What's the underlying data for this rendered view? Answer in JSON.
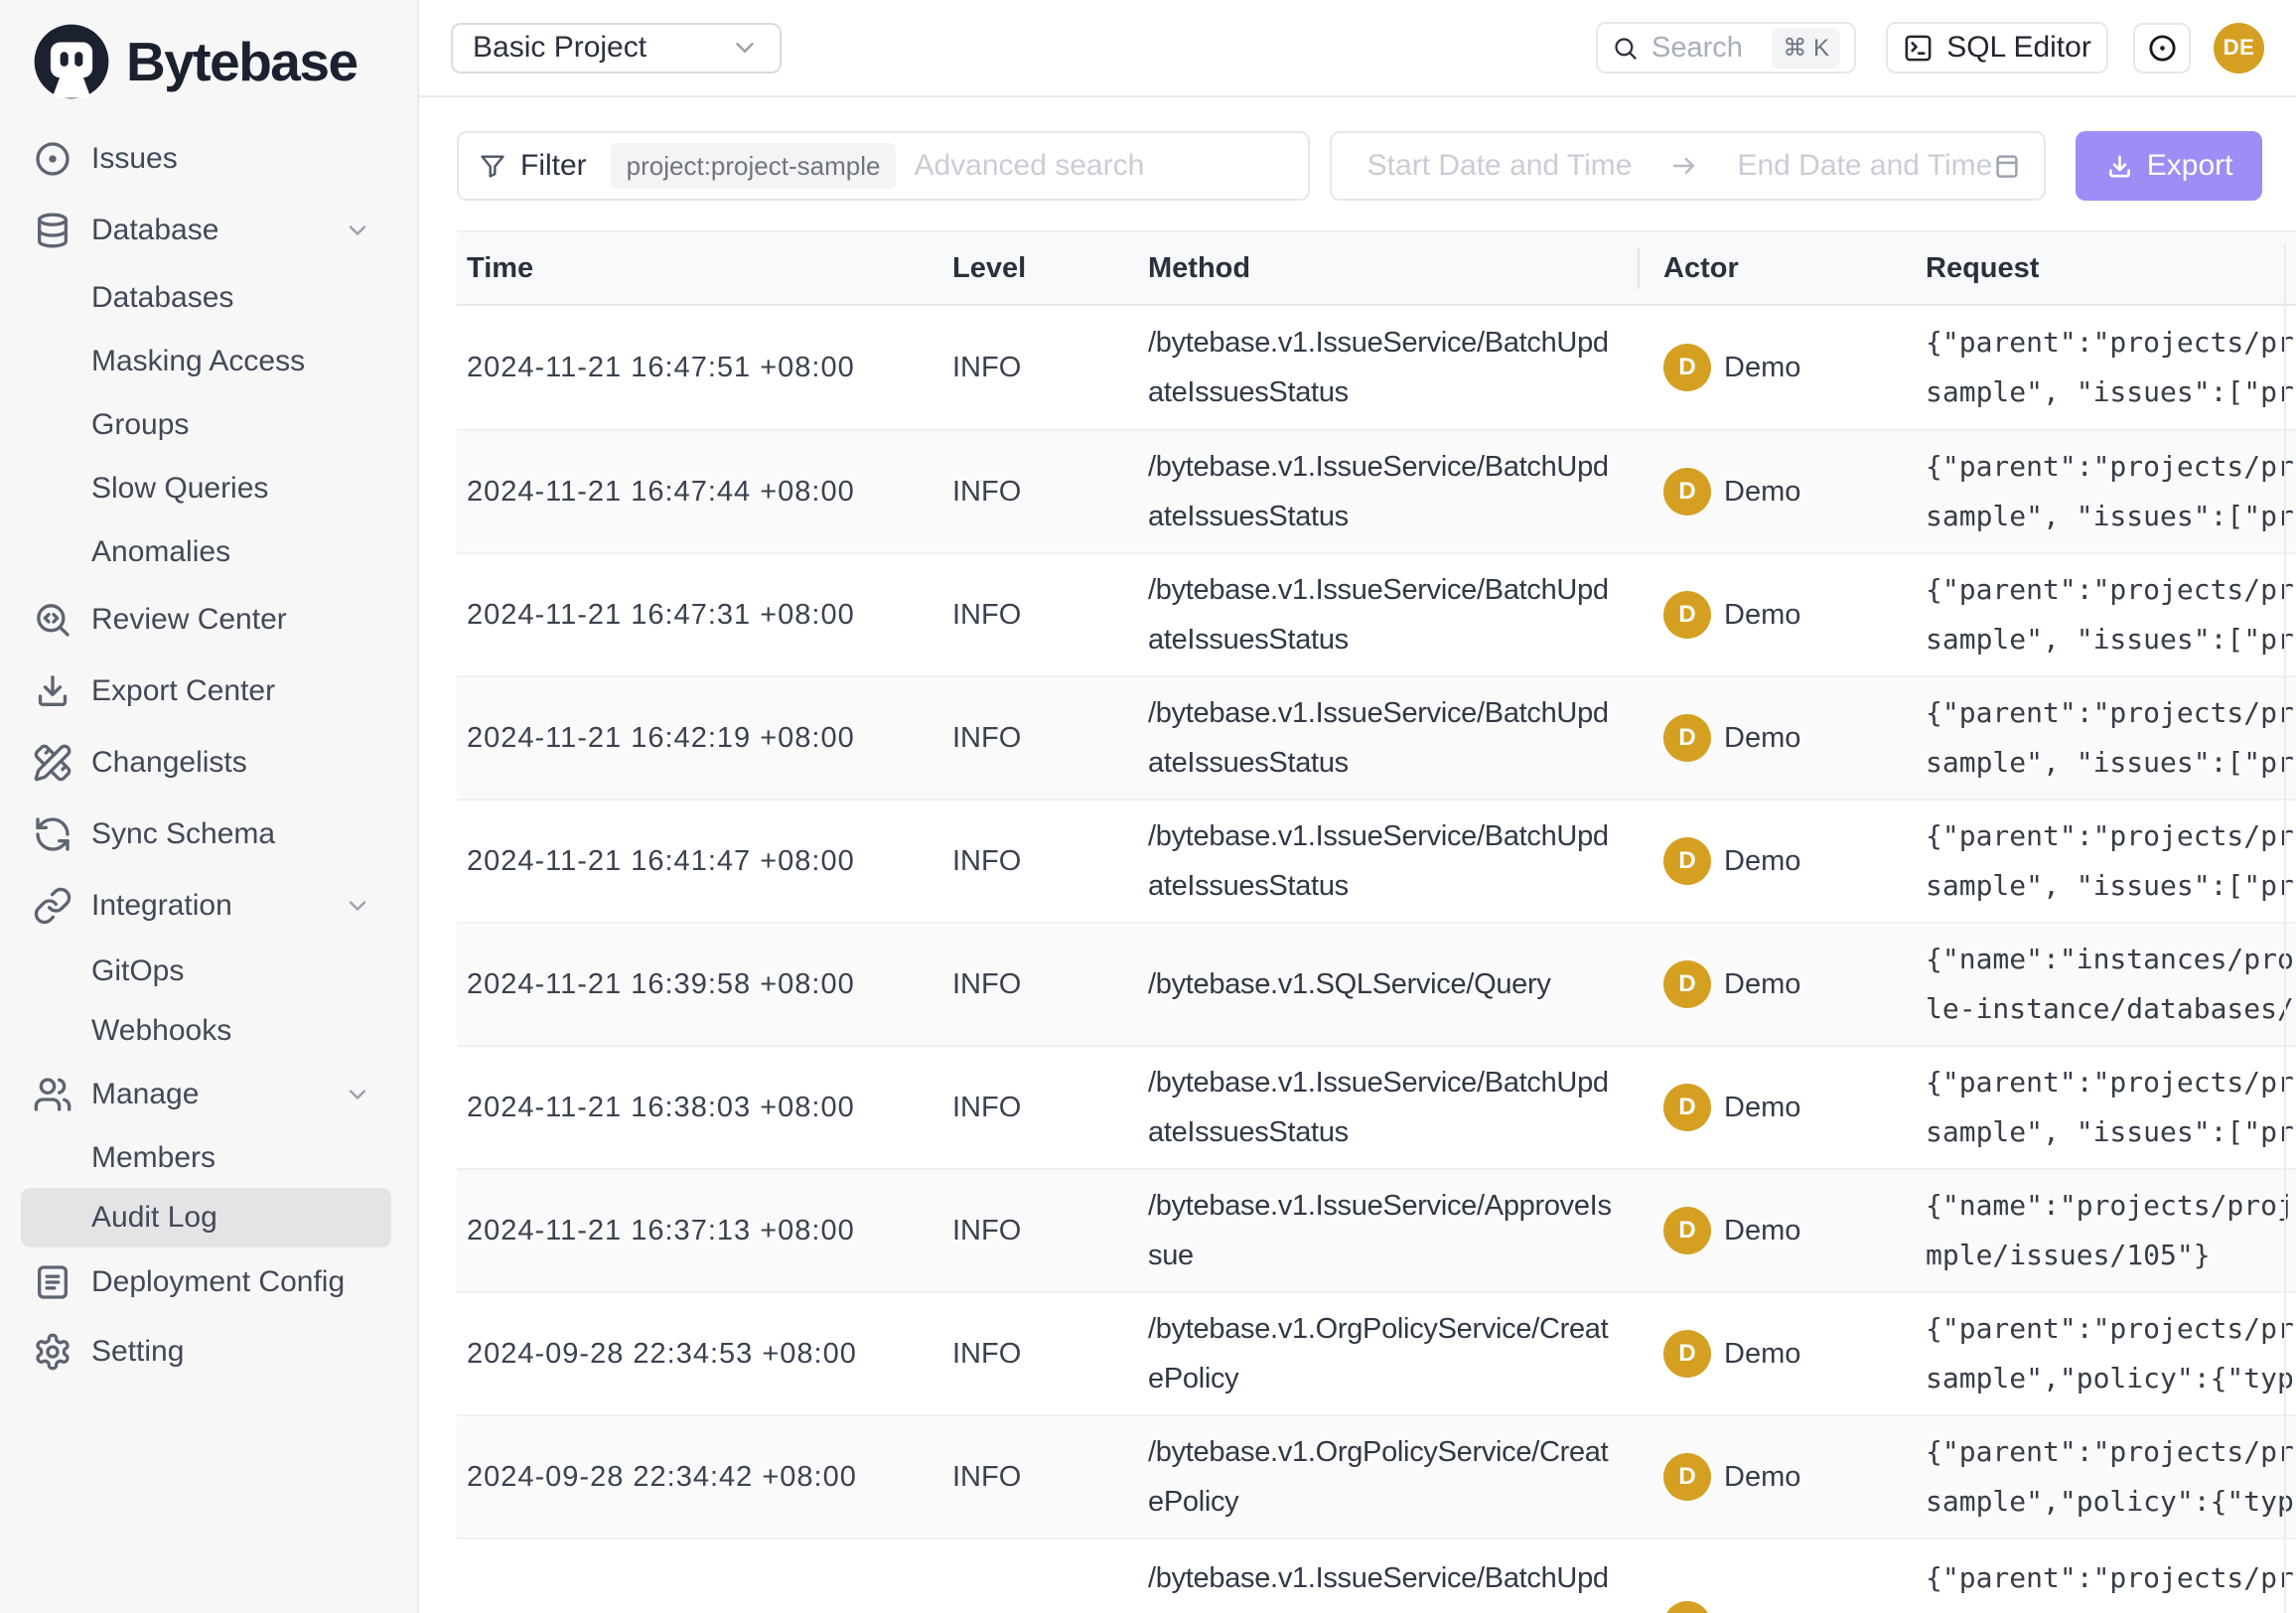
{
  "colors": {
    "brand_navy": "#1c2130",
    "accent_purple": "#9e8df5",
    "avatar_amber": "#d5a021",
    "sidebar_bg": "#f7f7f8",
    "active_item_bg": "#e4e4e7",
    "table_header_bg": "#f8f9fa",
    "row_alt_bg": "#fafafa"
  },
  "brand": {
    "name": "Bytebase"
  },
  "sidebar": {
    "items": [
      {
        "id": "issues",
        "label": "Issues",
        "icon": "circle-dot",
        "level": "top",
        "h": "v72"
      },
      {
        "id": "database",
        "label": "Database",
        "icon": "database",
        "level": "top",
        "h": "v72",
        "chevron": true
      },
      {
        "id": "databases",
        "label": "Databases",
        "level": "sub",
        "h": "v64"
      },
      {
        "id": "masking-access",
        "label": "Masking Access",
        "level": "sub",
        "h": "v64"
      },
      {
        "id": "groups",
        "label": "Groups",
        "level": "sub",
        "h": "v64"
      },
      {
        "id": "slow-queries",
        "label": "Slow Queries",
        "level": "sub",
        "h": "v64"
      },
      {
        "id": "anomalies",
        "label": "Anomalies",
        "level": "sub",
        "h": "v64"
      },
      {
        "id": "review-center",
        "label": "Review Center",
        "icon": "code-search",
        "level": "top",
        "h": "v72"
      },
      {
        "id": "export-center",
        "label": "Export Center",
        "icon": "download",
        "level": "top",
        "h": "v72"
      },
      {
        "id": "changelists",
        "label": "Changelists",
        "icon": "pencil-ruler",
        "level": "top",
        "h": "v72"
      },
      {
        "id": "sync-schema",
        "label": "Sync Schema",
        "icon": "refresh",
        "level": "top",
        "h": "v72"
      },
      {
        "id": "integration",
        "label": "Integration",
        "icon": "link",
        "level": "top",
        "h": "v72",
        "chevron": true
      },
      {
        "id": "gitops",
        "label": "GitOps",
        "level": "sub",
        "h": "v60"
      },
      {
        "id": "webhooks",
        "label": "Webhooks",
        "level": "sub",
        "h": "v60"
      },
      {
        "id": "manage",
        "label": "Manage",
        "icon": "users",
        "level": "top",
        "h": "v68",
        "chevron": true
      },
      {
        "id": "members",
        "label": "Members",
        "level": "sub",
        "h": "v60"
      },
      {
        "id": "audit-log",
        "label": "Audit Log",
        "level": "sub",
        "h": "v60",
        "active": true
      },
      {
        "id": "deployment-config",
        "label": "Deployment Config",
        "icon": "doc-lines",
        "level": "top",
        "h": "v70"
      },
      {
        "id": "setting",
        "label": "Setting",
        "icon": "gear",
        "level": "top",
        "h": "v70"
      }
    ]
  },
  "topbar": {
    "project_selector": "Basic Project",
    "search_label": "Search",
    "search_shortcut": "⌘ K",
    "sql_editor_label": "SQL Editor",
    "avatar_initials": "DE"
  },
  "filter_bar": {
    "filter_label": "Filter",
    "filter_chip": "project:project-sample",
    "advanced_placeholder": "Advanced search",
    "start_date_placeholder": "Start Date and Time",
    "end_date_placeholder": "End Date and Time",
    "export_label": "Export"
  },
  "table": {
    "columns": [
      "Time",
      "Level",
      "Method",
      "Actor",
      "Request"
    ],
    "rows": [
      {
        "time": "2024-11-21 16:47:51 +08:00",
        "level": "INFO",
        "method_lines": [
          "/bytebase.v1.IssueService/BatchUpd",
          "ateIssuesStatus"
        ],
        "actor": {
          "initial": "D",
          "name": "Demo"
        },
        "request_lines": [
          "{\"parent\":\"projects/pr",
          "sample\", \"issues\":[\"pr"
        ]
      },
      {
        "time": "2024-11-21 16:47:44 +08:00",
        "level": "INFO",
        "method_lines": [
          "/bytebase.v1.IssueService/BatchUpd",
          "ateIssuesStatus"
        ],
        "actor": {
          "initial": "D",
          "name": "Demo"
        },
        "request_lines": [
          "{\"parent\":\"projects/pr",
          "sample\", \"issues\":[\"pr"
        ]
      },
      {
        "time": "2024-11-21 16:47:31 +08:00",
        "level": "INFO",
        "method_lines": [
          "/bytebase.v1.IssueService/BatchUpd",
          "ateIssuesStatus"
        ],
        "actor": {
          "initial": "D",
          "name": "Demo"
        },
        "request_lines": [
          "{\"parent\":\"projects/pr",
          "sample\", \"issues\":[\"pr"
        ]
      },
      {
        "time": "2024-11-21 16:42:19 +08:00",
        "level": "INFO",
        "method_lines": [
          "/bytebase.v1.IssueService/BatchUpd",
          "ateIssuesStatus"
        ],
        "actor": {
          "initial": "D",
          "name": "Demo"
        },
        "request_lines": [
          "{\"parent\":\"projects/pr",
          "sample\", \"issues\":[\"pr"
        ]
      },
      {
        "time": "2024-11-21 16:41:47 +08:00",
        "level": "INFO",
        "method_lines": [
          "/bytebase.v1.IssueService/BatchUpd",
          "ateIssuesStatus"
        ],
        "actor": {
          "initial": "D",
          "name": "Demo"
        },
        "request_lines": [
          "{\"parent\":\"projects/pr",
          "sample\", \"issues\":[\"pr"
        ]
      },
      {
        "time": "2024-11-21 16:39:58 +08:00",
        "level": "INFO",
        "method_lines": [
          "/bytebase.v1.SQLService/Query"
        ],
        "actor": {
          "initial": "D",
          "name": "Demo"
        },
        "request_lines": [
          "{\"name\":\"instances/pro",
          "le-instance/databases/"
        ]
      },
      {
        "time": "2024-11-21 16:38:03 +08:00",
        "level": "INFO",
        "method_lines": [
          "/bytebase.v1.IssueService/BatchUpd",
          "ateIssuesStatus"
        ],
        "actor": {
          "initial": "D",
          "name": "Demo"
        },
        "request_lines": [
          "{\"parent\":\"projects/pr",
          "sample\", \"issues\":[\"pr"
        ]
      },
      {
        "time": "2024-11-21 16:37:13 +08:00",
        "level": "INFO",
        "method_lines": [
          "/bytebase.v1.IssueService/ApproveIs",
          "sue"
        ],
        "actor": {
          "initial": "D",
          "name": "Demo"
        },
        "request_lines": [
          "{\"name\":\"projects/proj",
          "mple/issues/105\"}"
        ]
      },
      {
        "time": "2024-09-28 22:34:53 +08:00",
        "level": "INFO",
        "method_lines": [
          "/bytebase.v1.OrgPolicyService/Creat",
          "ePolicy"
        ],
        "actor": {
          "initial": "D",
          "name": "Demo"
        },
        "request_lines": [
          "{\"parent\":\"projects/pr",
          "sample\",\"policy\":{\"typ"
        ]
      },
      {
        "time": "2024-09-28 22:34:42 +08:00",
        "level": "INFO",
        "method_lines": [
          "/bytebase.v1.OrgPolicyService/Creat",
          "ePolicy"
        ],
        "actor": {
          "initial": "D",
          "name": "Demo"
        },
        "request_lines": [
          "{\"parent\":\"projects/pr",
          "sample\",\"policy\":{\"typ"
        ]
      },
      {
        "time": "",
        "level": "",
        "method_lines": [
          "/bytebase.v1.IssueService/BatchUpd"
        ],
        "actor": {
          "initial": "D",
          "name": ""
        },
        "request_lines": [
          "{\"parent\":\"projects/pr"
        ],
        "partial": true
      }
    ]
  }
}
